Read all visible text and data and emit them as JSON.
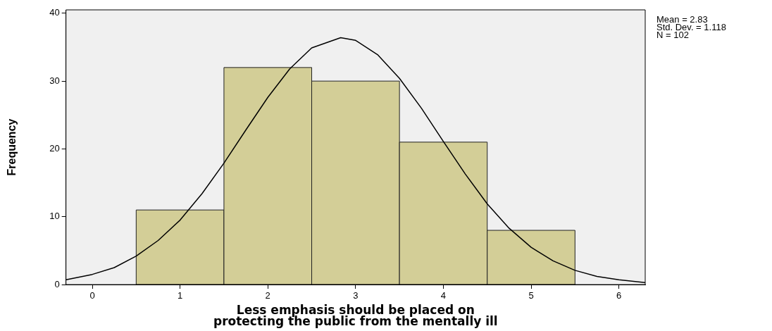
{
  "chart_data": {
    "type": "histogram",
    "xlabel": "Less emphasis should be placed on protecting the public from the mentally ill",
    "ylabel": "Frequency",
    "bins": [
      0.5,
      1.5,
      2.5,
      3.5,
      4.5,
      5.5
    ],
    "values": [
      11,
      32,
      30,
      21,
      8
    ],
    "color": "#d3ce97",
    "series": [
      {
        "type": "line",
        "color": "#000000",
        "x": [
          -0.3,
          0,
          0.25,
          0.5,
          0.75,
          1,
          1.25,
          1.5,
          1.75,
          2,
          2.25,
          2.5,
          2.83,
          3,
          3.25,
          3.5,
          3.75,
          4,
          4.25,
          4.5,
          4.75,
          5,
          5.25,
          5.5,
          5.75,
          6,
          6.3
        ],
        "values": [
          0.7,
          1.5,
          2.5,
          4.2,
          6.5,
          9.5,
          13.4,
          17.9,
          22.8,
          27.6,
          31.8,
          34.9,
          36.4,
          36,
          33.9,
          30.4,
          26,
          21.1,
          16.3,
          11.9,
          8.3,
          5.5,
          3.5,
          2.1,
          1.2,
          0.7,
          0.3
        ]
      }
    ],
    "xlim": [
      -0.3,
      6.3
    ],
    "xticks": [
      0,
      1,
      2,
      3,
      4,
      5,
      6
    ],
    "ylim": [
      0,
      40.5
    ],
    "yticks": [
      0,
      10,
      20,
      30,
      40
    ],
    "grid": false,
    "legend": false,
    "annotations": [
      "Mean = 2.83",
      "Std. Dev. = 1.118",
      "N = 102"
    ]
  }
}
